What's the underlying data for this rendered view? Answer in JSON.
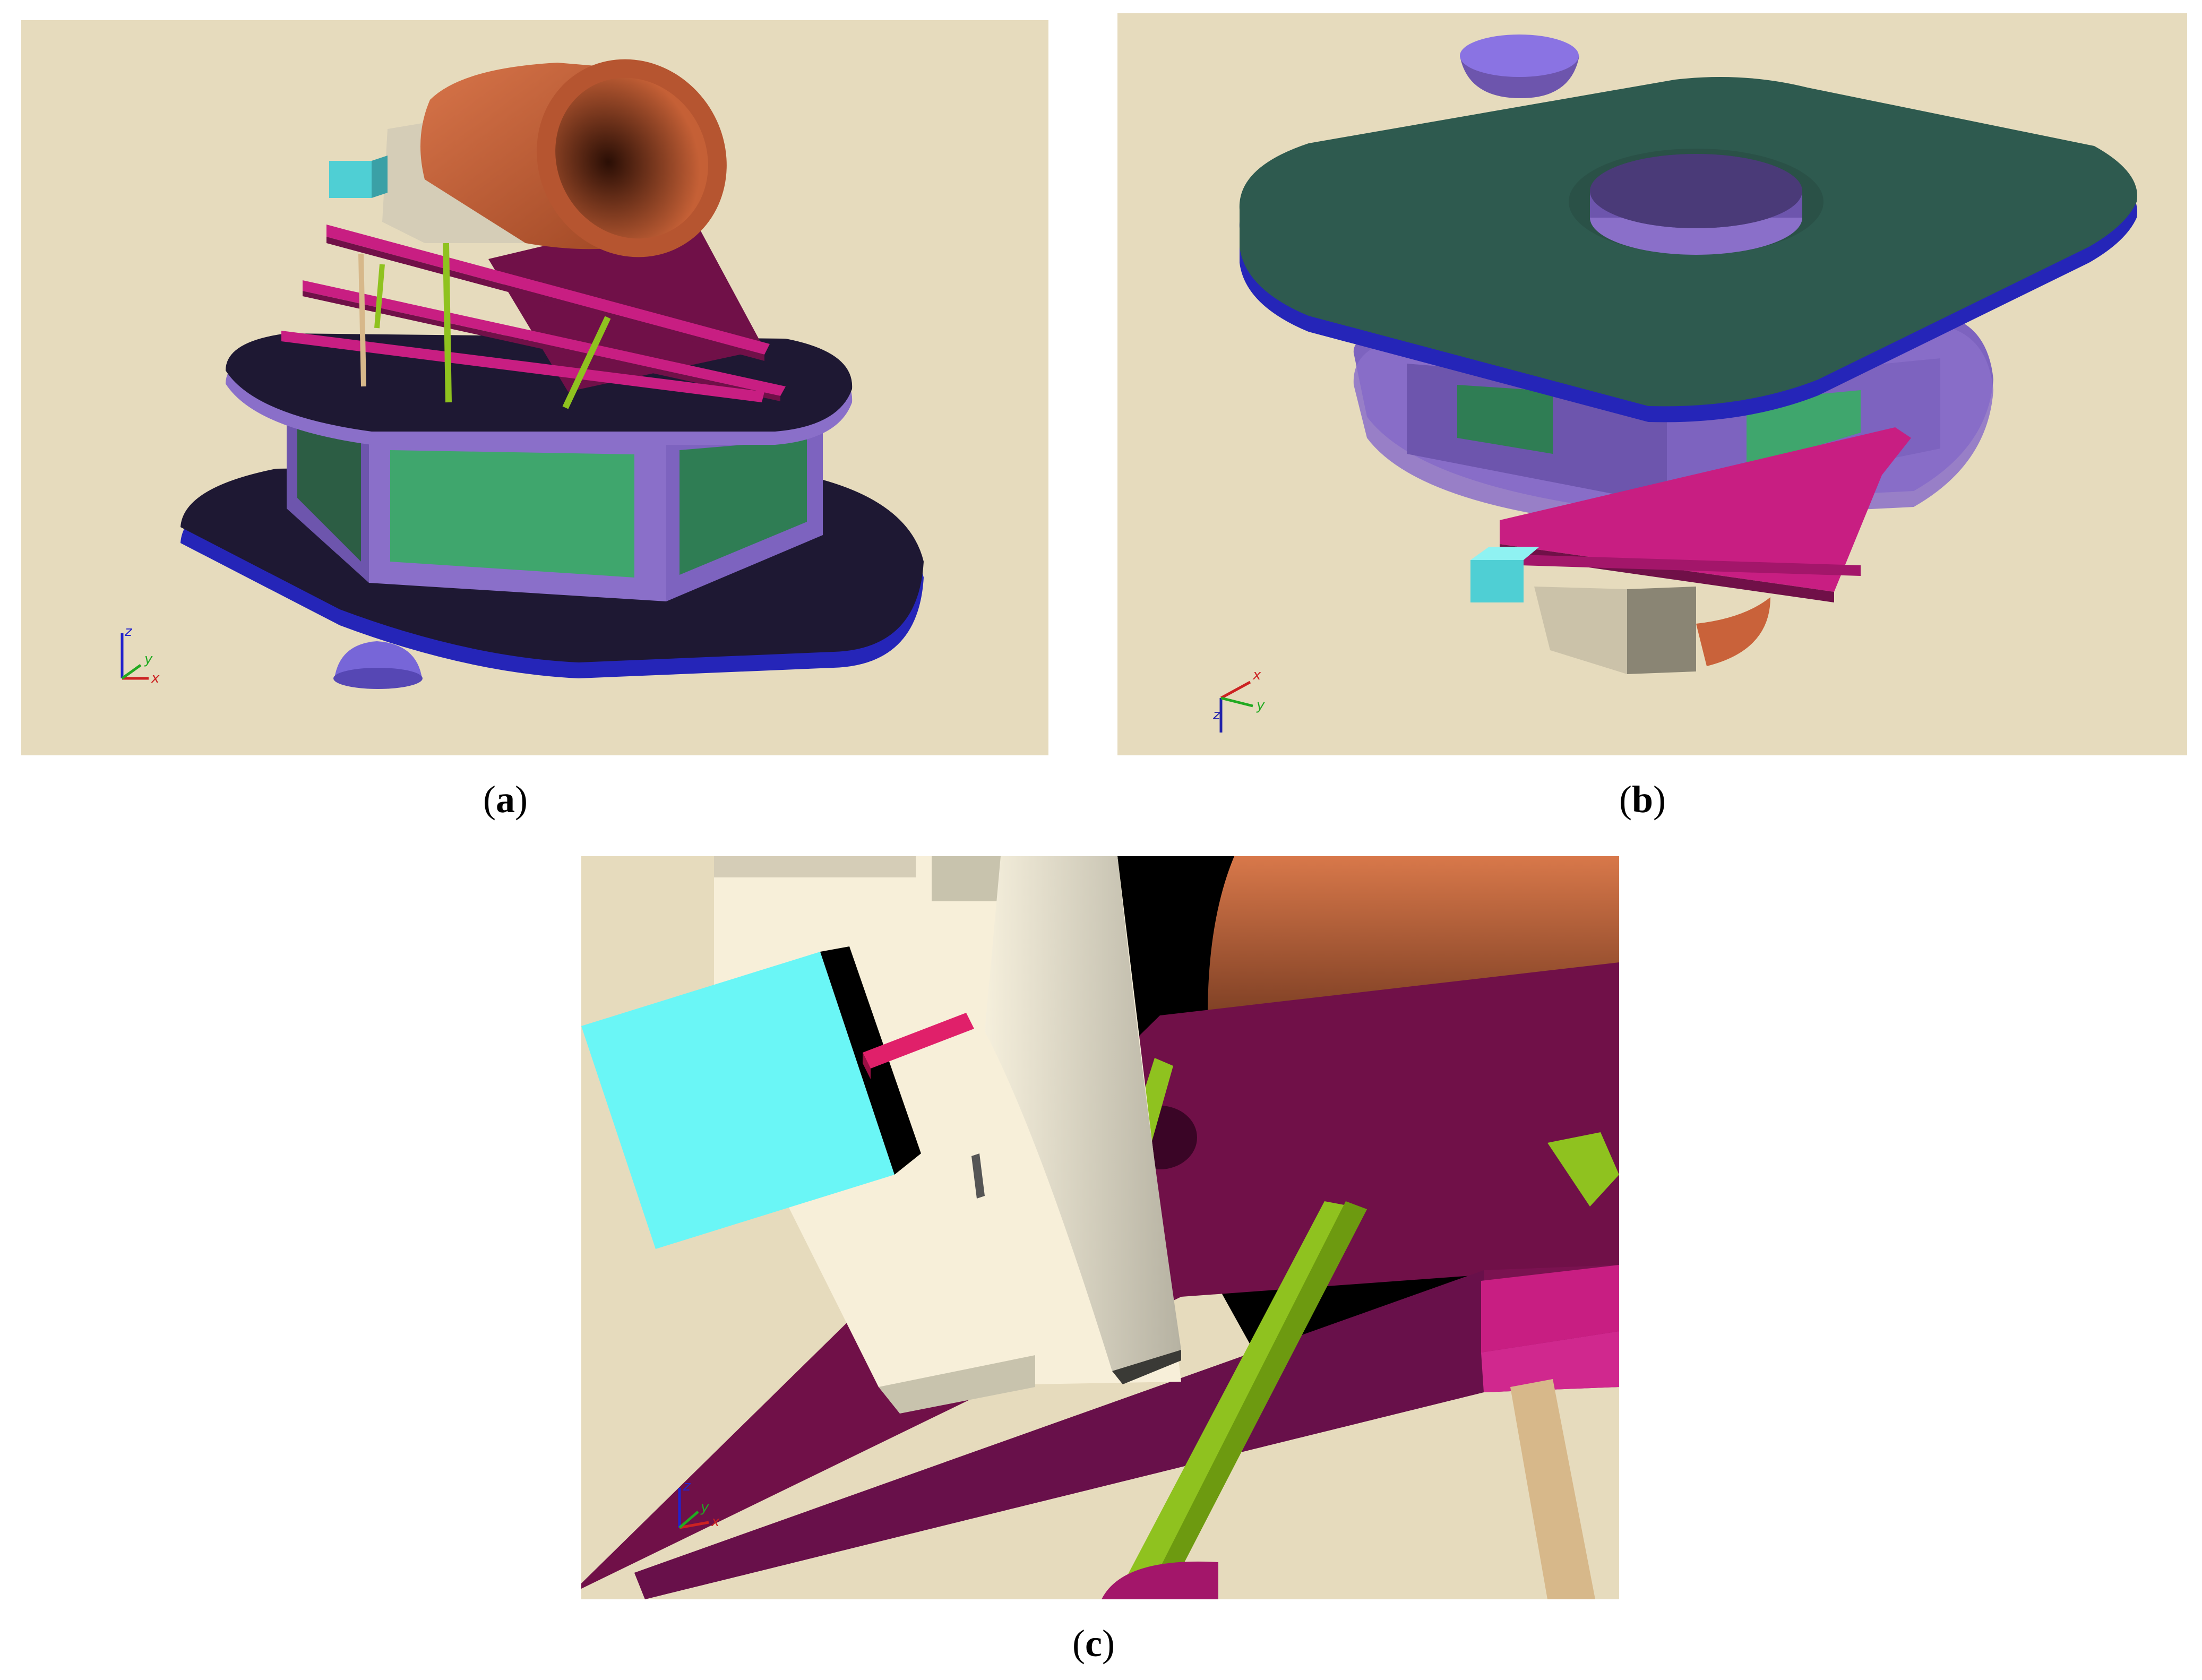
{
  "figure": {
    "panels": [
      {
        "id": "a",
        "caption_open": "(",
        "caption_letter": "a",
        "caption_close": ")"
      },
      {
        "id": "b",
        "caption_open": "(",
        "caption_letter": "b",
        "caption_close": ")"
      },
      {
        "id": "c",
        "caption_open": "(",
        "caption_letter": "c",
        "caption_close": ")"
      }
    ],
    "axis_labels": {
      "x": "x",
      "y": "y",
      "z": "z"
    },
    "colors": {
      "background": "#e6dbbd",
      "platform_dark": "#1e1833",
      "platform_edge": "#2525b8",
      "hex_body": "#8a6fc9",
      "panel_green": "#3fa66d",
      "pink_plate": "#c81e82",
      "magenta_plate": "#701048",
      "copper_tube": "#c9623a",
      "top_plate_green": "#2e5a4f",
      "cyan_block": "#6af6f6",
      "cream_block": "#f7efd9",
      "lime_rod": "#8fc21f",
      "tan_rod": "#d7b88a"
    }
  }
}
